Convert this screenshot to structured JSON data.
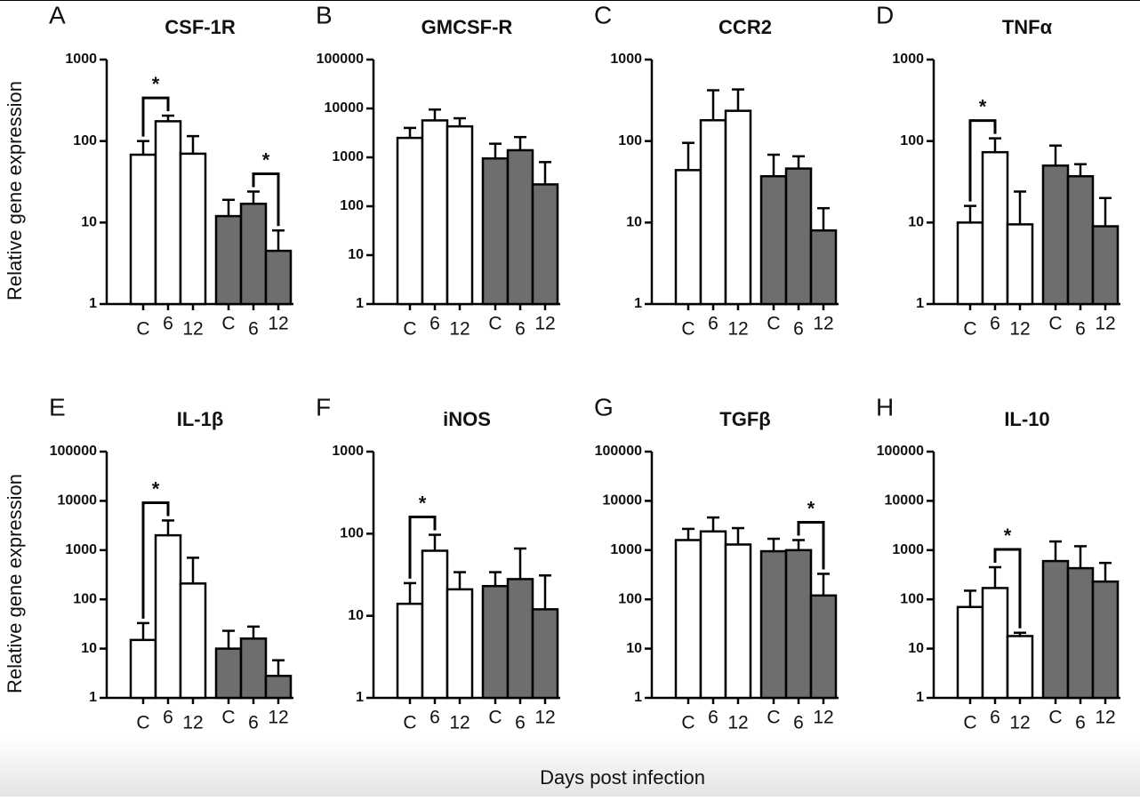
{
  "xlabel": "Days post infection",
  "chart_data": [
    {
      "type": "bar",
      "panel_label": "A",
      "title": "CSF-1R",
      "ylabel": "Relative gene expression",
      "log": true,
      "categories": [
        "C",
        "6",
        "12",
        "C",
        "6",
        "12"
      ],
      "values": [
        68,
        175,
        70,
        12,
        17,
        4.5
      ],
      "errors": [
        32,
        30,
        45,
        7,
        7,
        3.5
      ],
      "colors": [
        "#ffffff",
        "#ffffff",
        "#ffffff",
        "#6e6e6e",
        "#6e6e6e",
        "#6e6e6e"
      ],
      "ylim": [
        1,
        1000
      ],
      "yticks": [
        1,
        10,
        100,
        1000
      ],
      "brackets": [
        {
          "between": [
            0,
            1
          ],
          "label": "*"
        },
        {
          "between": [
            4,
            5
          ],
          "label": "*"
        }
      ]
    },
    {
      "type": "bar",
      "panel_label": "B",
      "title": "GMCSF-R",
      "log": true,
      "categories": [
        "C",
        "6",
        "12",
        "C",
        "6",
        "12"
      ],
      "values": [
        2500,
        5700,
        4300,
        950,
        1400,
        280
      ],
      "errors": [
        1500,
        3800,
        2000,
        950,
        1200,
        520
      ],
      "colors": [
        "#ffffff",
        "#ffffff",
        "#ffffff",
        "#6e6e6e",
        "#6e6e6e",
        "#6e6e6e"
      ],
      "ylim": [
        1,
        100000
      ],
      "yticks": [
        1,
        10,
        100,
        1000,
        10000,
        100000
      ],
      "brackets": []
    },
    {
      "type": "bar",
      "panel_label": "C",
      "title": "CCR2",
      "log": true,
      "categories": [
        "C",
        "6",
        "12",
        "C",
        "6",
        "12"
      ],
      "values": [
        44,
        180,
        235,
        37,
        46,
        8
      ],
      "errors": [
        51,
        240,
        195,
        31,
        19,
        7
      ],
      "colors": [
        "#ffffff",
        "#ffffff",
        "#ffffff",
        "#6e6e6e",
        "#6e6e6e",
        "#6e6e6e"
      ],
      "ylim": [
        1,
        1000
      ],
      "yticks": [
        1,
        10,
        100,
        1000
      ],
      "brackets": []
    },
    {
      "type": "bar",
      "panel_label": "D",
      "title": "TNFα",
      "log": true,
      "categories": [
        "C",
        "6",
        "12",
        "C",
        "6",
        "12"
      ],
      "values": [
        10,
        73,
        9.5,
        50,
        37,
        9
      ],
      "errors": [
        6,
        35,
        14.5,
        38,
        15,
        11
      ],
      "colors": [
        "#ffffff",
        "#ffffff",
        "#ffffff",
        "#6e6e6e",
        "#6e6e6e",
        "#6e6e6e"
      ],
      "ylim": [
        1,
        1000
      ],
      "yticks": [
        1,
        10,
        100,
        1000
      ],
      "brackets": [
        {
          "between": [
            0,
            1
          ],
          "label": "*"
        }
      ]
    },
    {
      "type": "bar",
      "panel_label": "E",
      "title": "IL-1β",
      "ylabel": "Relative gene expression",
      "log": true,
      "categories": [
        "C",
        "6",
        "12",
        "C",
        "6",
        "12"
      ],
      "values": [
        15,
        2000,
        210,
        10,
        16,
        2.8
      ],
      "errors": [
        18,
        2000,
        490,
        13,
        12,
        3
      ],
      "colors": [
        "#ffffff",
        "#ffffff",
        "#ffffff",
        "#6e6e6e",
        "#6e6e6e",
        "#6e6e6e"
      ],
      "ylim": [
        1,
        100000
      ],
      "yticks": [
        1,
        10,
        100,
        1000,
        10000,
        100000
      ],
      "brackets": [
        {
          "between": [
            0,
            1
          ],
          "label": "*"
        }
      ]
    },
    {
      "type": "bar",
      "panel_label": "F",
      "title": "iNOS",
      "log": true,
      "categories": [
        "C",
        "6",
        "12",
        "C",
        "6",
        "12"
      ],
      "values": [
        14,
        62,
        21,
        23,
        28,
        12
      ],
      "errors": [
        11,
        35,
        13,
        11,
        38,
        19
      ],
      "colors": [
        "#ffffff",
        "#ffffff",
        "#ffffff",
        "#6e6e6e",
        "#6e6e6e",
        "#6e6e6e"
      ],
      "ylim": [
        1,
        1000
      ],
      "yticks": [
        1,
        10,
        100,
        1000
      ],
      "brackets": [
        {
          "between": [
            0,
            1
          ],
          "label": "*"
        }
      ]
    },
    {
      "type": "bar",
      "panel_label": "G",
      "title": "TGFβ",
      "log": true,
      "categories": [
        "C",
        "6",
        "12",
        "C",
        "6",
        "12"
      ],
      "values": [
        1600,
        2400,
        1300,
        950,
        1000,
        120
      ],
      "errors": [
        1100,
        2200,
        1500,
        750,
        600,
        210
      ],
      "colors": [
        "#ffffff",
        "#ffffff",
        "#ffffff",
        "#6e6e6e",
        "#6e6e6e",
        "#6e6e6e"
      ],
      "ylim": [
        1,
        100000
      ],
      "yticks": [
        1,
        10,
        100,
        1000,
        10000,
        100000
      ],
      "brackets": [
        {
          "between": [
            4,
            5
          ],
          "label": "*"
        }
      ]
    },
    {
      "type": "bar",
      "panel_label": "H",
      "title": "IL-10",
      "log": true,
      "categories": [
        "C",
        "6",
        "12",
        "C",
        "6",
        "12"
      ],
      "values": [
        70,
        170,
        18,
        600,
        430,
        230
      ],
      "errors": [
        80,
        280,
        3,
        900,
        770,
        320
      ],
      "colors": [
        "#ffffff",
        "#ffffff",
        "#ffffff",
        "#6e6e6e",
        "#6e6e6e",
        "#6e6e6e"
      ],
      "ylim": [
        1,
        100000
      ],
      "yticks": [
        1,
        10,
        100,
        1000,
        10000,
        100000
      ],
      "brackets": [
        {
          "between": [
            1,
            2
          ],
          "label": "*"
        }
      ]
    }
  ]
}
